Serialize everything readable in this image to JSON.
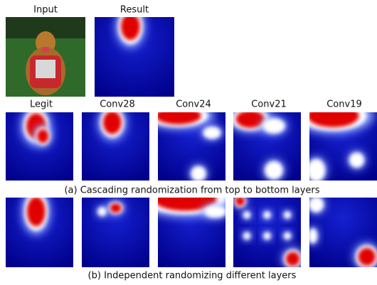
{
  "top_row": {
    "labels": [
      "Input",
      "Result"
    ]
  },
  "grid": {
    "column_labels": [
      "Legit",
      "Conv28",
      "Conv24",
      "Conv21",
      "Conv19"
    ]
  },
  "captions": [
    "(a) Cascading randomization from top to bottom layers",
    "(b) Independent randomizing different layers"
  ]
}
